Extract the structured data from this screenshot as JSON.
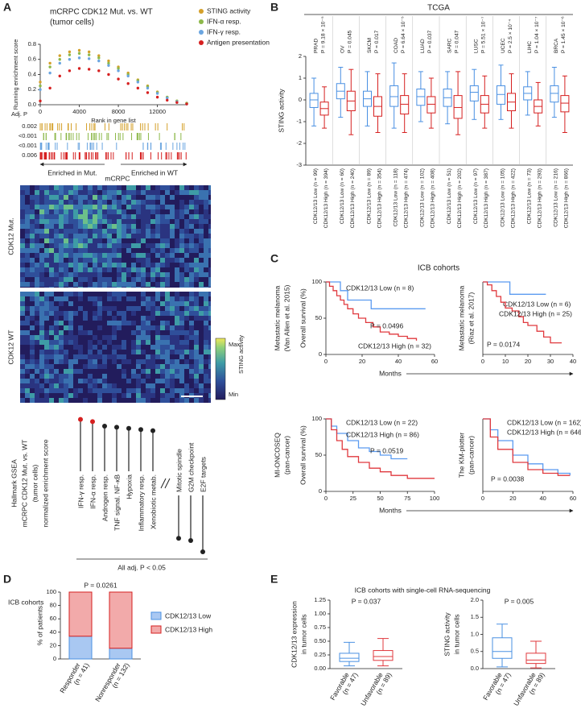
{
  "panel_labels": [
    "A",
    "B",
    "C",
    "D",
    "E"
  ],
  "image_panel": {
    "title": "mCRPC",
    "rows": [
      "CDK12 Mut.",
      "CDK12 WT"
    ],
    "colorbar_label": "STING activity",
    "max_label": "Max",
    "min_label": "Min"
  },
  "chart_data": [
    {
      "type": "enrichment",
      "title": "mCRPC CDK12 Mut. vs. WT",
      "subtitle": "(tumor cells)",
      "x_label": "Rank in gene list",
      "y_label": "Running enrichment score",
      "x": [
        0,
        1000,
        2000,
        3000,
        4000,
        5000,
        6000,
        7000,
        8000,
        9000,
        10000,
        11000,
        12000,
        13000,
        14000,
        15000
      ],
      "xlim": [
        0,
        15000
      ],
      "xticks": [
        0,
        4000,
        8000,
        12000
      ],
      "ylim": [
        0,
        0.8
      ],
      "yticks": [
        {
          "value": 0,
          "label": "0.0"
        },
        {
          "value": 0.2,
          "label": "0.2"
        },
        {
          "value": 0.4,
          "label": "0.4"
        },
        {
          "value": 0.6,
          "label": "0.6"
        },
        {
          "value": 0.8,
          "label": "0.8"
        }
      ],
      "series": [
        {
          "name": "STING activity",
          "color": "#d4a02a",
          "values": [
            0.3,
            0.55,
            0.65,
            0.7,
            0.72,
            0.7,
            0.65,
            0.58,
            0.5,
            0.42,
            0.33,
            0.25,
            0.17,
            0.1,
            0.05,
            0.02
          ]
        },
        {
          "name": "IFN-α resp.",
          "color": "#8db84a",
          "values": [
            0.25,
            0.5,
            0.6,
            0.66,
            0.68,
            0.66,
            0.62,
            0.55,
            0.48,
            0.4,
            0.32,
            0.24,
            0.16,
            0.1,
            0.05,
            0.02
          ]
        },
        {
          "name": "IFN-γ resp.",
          "color": "#6aa5e0",
          "values": [
            0.2,
            0.42,
            0.55,
            0.6,
            0.62,
            0.61,
            0.58,
            0.52,
            0.45,
            0.38,
            0.3,
            0.22,
            0.15,
            0.09,
            0.04,
            0.01
          ]
        },
        {
          "name": "Antigen presentation",
          "color": "#d62020",
          "values": [
            0.05,
            0.22,
            0.38,
            0.45,
            0.48,
            0.47,
            0.45,
            0.4,
            0.34,
            0.28,
            0.22,
            0.16,
            0.1,
            0.06,
            0.03,
            0.01
          ]
        }
      ],
      "p_title": "Adj. P",
      "p_values": [
        "0.002",
        "<0.001",
        "<0.001",
        "0.006"
      ],
      "left_arrow": "Enriched in Mut.",
      "right_arrow": "Enriched in WT"
    },
    {
      "type": "lollipop",
      "y_label_lines": [
        "Hallmark GSEA",
        "mCRPC CDK12 Mut. vs. WT",
        "(tumor cells)",
        "normalized enrichment score"
      ],
      "categories": [
        "IFN-γ resp.",
        "IFN-α resp.",
        "Androgen resp.",
        "TNF signal. NF-κB",
        "Hypoxia",
        "Inflammatory resp.",
        "Xenobiotic metab.",
        "Mitotic spindle",
        "G2M checkpoint",
        "E2F targets"
      ],
      "values": [
        2.3,
        2.2,
        2.0,
        1.95,
        1.9,
        1.85,
        1.8,
        -1.9,
        -2.0,
        -2.5
      ],
      "colors": [
        "#d62020",
        "#d62020",
        "#222222",
        "#222222",
        "#222222",
        "#222222",
        "#222222",
        "#222222",
        "#222222",
        "#222222"
      ],
      "footnote": "All adj. P < 0.05"
    },
    {
      "type": "box_groups",
      "title": "TCGA",
      "y_label": "STING activity",
      "ylim": [
        -3,
        2
      ],
      "yticks": [
        -3,
        -2,
        -1,
        0,
        1,
        2
      ],
      "colors": [
        "#4a90e2",
        "#d62020"
      ],
      "groups": [
        {
          "name": "PRAD",
          "p_value": "P = 9.18 × 10⁻⁵",
          "boxes": [
            {
              "label": "CDK12/13 Low (n = 99)",
              "stats": [
                -1.2,
                -0.35,
                0,
                0.3,
                1.0
              ]
            },
            {
              "label": "CDK12/13 High (n = 394)",
              "stats": [
                -1.3,
                -0.7,
                -0.4,
                -0.1,
                0.6
              ]
            }
          ]
        },
        {
          "name": "OV",
          "p_value": "P = 0.045",
          "boxes": [
            {
              "label": "CDK12/13 Low (n = 60)",
              "stats": [
                -0.8,
                0.05,
                0.4,
                0.75,
                1.5
              ]
            },
            {
              "label": "CDK12/13 High (n = 240)",
              "stats": [
                -1.6,
                -0.5,
                -0.05,
                0.4,
                1.4
              ]
            }
          ]
        },
        {
          "name": "SKCM",
          "p_value": "P = 0.017",
          "boxes": [
            {
              "label": "CDK12/13 Low (n = 89)",
              "stats": [
                -1.2,
                -0.3,
                0.05,
                0.4,
                1.3
              ]
            },
            {
              "label": "CDK12/13 High (n = 354)",
              "stats": [
                -1.5,
                -0.75,
                -0.3,
                0.15,
                1.2
              ]
            }
          ]
        },
        {
          "name": "COAD",
          "p_value": "P = 6.64 × 10⁻⁵",
          "boxes": [
            {
              "label": "CDK12/13 Low (n = 118)",
              "stats": [
                -1.3,
                -0.3,
                0.15,
                0.65,
                1.7
              ]
            },
            {
              "label": "CDK12/13 High (n = 474)",
              "stats": [
                -1.5,
                -0.65,
                -0.2,
                0.2,
                1.2
              ]
            }
          ]
        },
        {
          "name": "LUAD",
          "p_value": "P = 0.037",
          "boxes": [
            {
              "label": "CDK12/13 Low (n = 102)",
              "stats": [
                -1.0,
                -0.25,
                0.15,
                0.5,
                1.3
              ]
            },
            {
              "label": "CDK12/13 High (n = 408)",
              "stats": [
                -1.3,
                -0.6,
                -0.2,
                0.15,
                1.0
              ]
            }
          ]
        },
        {
          "name": "SARC",
          "p_value": "P = 0.047",
          "boxes": [
            {
              "label": "CDK12/13 Low (n = 51)",
              "stats": [
                -1.1,
                -0.3,
                0.1,
                0.5,
                1.3
              ]
            },
            {
              "label": "CDK12/13 High (n = 202)",
              "stats": [
                -1.6,
                -0.85,
                -0.35,
                0.2,
                1.3
              ]
            }
          ]
        },
        {
          "name": "LUSC",
          "p_value": "P = 5.51 × 10⁻⁷",
          "boxes": [
            {
              "label": "CDK12/13 Low (n = 97)",
              "stats": [
                -0.9,
                -0.05,
                0.35,
                0.65,
                1.4
              ]
            },
            {
              "label": "CDK12/13 High (n = 387)",
              "stats": [
                -1.3,
                -0.6,
                -0.2,
                0.2,
                1.1
              ]
            }
          ]
        },
        {
          "name": "UCEC",
          "p_value": "P = 2.5 × 10⁻⁴",
          "boxes": [
            {
              "label": "CDK12/13 Low (n = 105)",
              "stats": [
                -0.9,
                -0.2,
                0.25,
                0.65,
                1.6
              ]
            },
            {
              "label": "CDK12/13 High (n = 422)",
              "stats": [
                -1.3,
                -0.5,
                -0.1,
                0.3,
                1.2
              ]
            }
          ]
        },
        {
          "name": "LIHC",
          "p_value": "P = 1.04 × 10⁻⁷",
          "boxes": [
            {
              "label": "CDK12/13 Low (n = 73)",
              "stats": [
                -0.7,
                0,
                0.3,
                0.6,
                1.3
              ]
            },
            {
              "label": "CDK12/13 High (n = 293)",
              "stats": [
                -1.2,
                -0.6,
                -0.3,
                0.0,
                0.8
              ]
            }
          ]
        },
        {
          "name": "BRCA",
          "p_value": "P = 1.45 × 10⁻⁶",
          "boxes": [
            {
              "label": "CDK12/13 Low (n = 216)",
              "stats": [
                -0.8,
                -0.1,
                0.3,
                0.65,
                1.5
              ]
            },
            {
              "label": "CDK12/13 High (n = 866)",
              "stats": [
                -1.5,
                -0.55,
                -0.15,
                0.2,
                1.1
              ]
            }
          ]
        }
      ]
    },
    {
      "type": "km",
      "title": "ICB cohorts",
      "cohort_lines": [
        "Metastatic melanoma",
        "(Van Allen et al. 2015)"
      ],
      "y_label": "Overall survival (%)",
      "x_label": "Months",
      "p_value": "P = 0.0496",
      "xlim": [
        0,
        60
      ],
      "xticks": [
        0,
        20,
        40,
        60
      ],
      "ylim": [
        0,
        100
      ],
      "yticks": [
        0,
        50,
        100
      ],
      "series": [
        {
          "name": "CDK12/13 Low (n = 8)",
          "color": "#5b9bf0",
          "x": [
            0,
            5,
            8,
            12,
            25,
            40,
            55
          ],
          "values": [
            100,
            100,
            88,
            75,
            63,
            63,
            63
          ]
        },
        {
          "name": "CDK12/13 High (n = 32)",
          "color": "#e0393e",
          "x": [
            0,
            2,
            4,
            6,
            8,
            10,
            12,
            15,
            18,
            22,
            26,
            30,
            35,
            40,
            45,
            50
          ],
          "values": [
            100,
            94,
            88,
            81,
            75,
            69,
            63,
            56,
            50,
            44,
            38,
            31,
            28,
            25,
            22,
            19
          ]
        }
      ]
    },
    {
      "type": "km",
      "cohort_lines": [
        "Metastatic melanoma",
        "(Riaz et al. 2017)"
      ],
      "p_value": "P = 0.0174",
      "xlim": [
        0,
        40
      ],
      "xticks": [
        0,
        10,
        20,
        30,
        40
      ],
      "ylim": [
        0,
        100
      ],
      "series": [
        {
          "name": "CDK12/13 Low (n = 6)",
          "color": "#5b9bf0",
          "x": [
            0,
            10,
            12,
            28
          ],
          "values": [
            100,
            100,
            83,
            83
          ]
        },
        {
          "name": "CDK12/13 High (n = 25)",
          "color": "#e0393e",
          "x": [
            0,
            2,
            4,
            6,
            8,
            10,
            13,
            16,
            18,
            20,
            24,
            27,
            30,
            35
          ],
          "values": [
            100,
            96,
            88,
            80,
            72,
            64,
            60,
            52,
            44,
            40,
            32,
            24,
            16,
            16
          ]
        }
      ]
    },
    {
      "type": "km",
      "cohort_lines": [
        "MI-ONCOSEQ",
        "(pan-cancer)"
      ],
      "y_label": "Overall survival (%)",
      "x_label": "Months",
      "p_value": "P = 0.0519",
      "xlim": [
        0,
        100
      ],
      "xticks": [
        0,
        25,
        50,
        75,
        100
      ],
      "ylim": [
        0,
        100
      ],
      "yticks": [
        0,
        50,
        100
      ],
      "series": [
        {
          "name": "CDK12/13 Low (n = 22)",
          "color": "#5b9bf0",
          "x": [
            0,
            5,
            10,
            20,
            30,
            40,
            50,
            60,
            75
          ],
          "values": [
            100,
            90,
            80,
            70,
            60,
            55,
            50,
            45,
            45
          ]
        },
        {
          "name": "CDK12/13 High (n = 86)",
          "color": "#e0393e",
          "x": [
            0,
            5,
            10,
            15,
            20,
            30,
            40,
            50,
            60,
            75,
            100
          ],
          "values": [
            100,
            85,
            70,
            58,
            48,
            40,
            32,
            27,
            22,
            18,
            18
          ]
        }
      ]
    },
    {
      "type": "km",
      "cohort_lines": [
        "The KM-plotter",
        "(pan-cancer)"
      ],
      "p_value": "P = 0.0038",
      "xlim": [
        0,
        60
      ],
      "xticks": [
        0,
        20,
        40,
        60
      ],
      "ylim": [
        0,
        100
      ],
      "series": [
        {
          "name": "CDK12/13 Low (n = 162)",
          "color": "#5b9bf0",
          "x": [
            0,
            5,
            10,
            20,
            30,
            40,
            50,
            58
          ],
          "values": [
            100,
            85,
            70,
            50,
            38,
            30,
            25,
            22
          ]
        },
        {
          "name": "CDK12/13 High (n = 646)",
          "color": "#e0393e",
          "x": [
            0,
            5,
            10,
            20,
            30,
            40,
            50,
            58
          ],
          "values": [
            100,
            75,
            58,
            40,
            30,
            25,
            22,
            22
          ]
        }
      ]
    },
    {
      "type": "stacked_bar",
      "title": "ICB cohorts",
      "y_label": "% of patients",
      "p_value": "P = 0.0261",
      "categories": [
        "Responder",
        "Nonresponder"
      ],
      "category_notes": [
        "(n = 41)",
        "(n = 132)"
      ],
      "ylim": [
        0,
        100
      ],
      "yticks": [
        0,
        20,
        40,
        60,
        80,
        100
      ],
      "series": [
        {
          "name": "CDK12/13 Low",
          "color": "#a9c8f2",
          "stroke": "#4a90e2",
          "values": [
            34,
            16
          ]
        },
        {
          "name": "CDK12/13 High",
          "color": "#f2aaaa",
          "stroke": "#d62020",
          "values": [
            66,
            84
          ]
        }
      ]
    },
    {
      "type": "box",
      "title": "ICB cohorts with single-cell RNA-sequencing",
      "y_label_lines": [
        "CDK12/13 expression",
        "in tumor cells"
      ],
      "p_value": "P = 0.037",
      "ylim": [
        0,
        1.25
      ],
      "yticks": [
        {
          "value": 0,
          "label": "0.00"
        },
        {
          "value": 0.25,
          "label": "0.25"
        },
        {
          "value": 0.5,
          "label": "0.50"
        },
        {
          "value": 0.75,
          "label": "0.75"
        },
        {
          "value": 1,
          "label": "1.00"
        },
        {
          "value": 1.25,
          "label": "1.25"
        }
      ],
      "categories": [
        "Favorable",
        "Unfavorable"
      ],
      "category_notes": [
        "(n = 47)",
        "(n = 89)"
      ],
      "colors": [
        "#4a90e2",
        "#e0393e"
      ],
      "boxes": [
        [
          0.05,
          0.13,
          0.19,
          0.28,
          0.48
        ],
        [
          0.05,
          0.15,
          0.22,
          0.33,
          0.55
        ]
      ]
    },
    {
      "type": "box",
      "y_label_lines": [
        "STING activity",
        "in tumor cells"
      ],
      "p_value": "P = 0.005",
      "ylim": [
        0,
        2
      ],
      "yticks": [
        {
          "value": 0,
          "label": "0.0"
        },
        {
          "value": 0.5,
          "label": "0.5"
        },
        {
          "value": 1,
          "label": "1.0"
        },
        {
          "value": 1.5,
          "label": "1.5"
        },
        {
          "value": 2,
          "label": "2.0"
        }
      ],
      "categories": [
        "Favorable",
        "Unfavorable"
      ],
      "category_notes": [
        "(n = 47)",
        "(n = 89)"
      ],
      "colors": [
        "#4a90e2",
        "#e0393e"
      ],
      "boxes": [
        [
          0.05,
          0.3,
          0.5,
          0.9,
          1.3
        ],
        [
          0.02,
          0.15,
          0.25,
          0.45,
          0.8
        ]
      ]
    }
  ]
}
